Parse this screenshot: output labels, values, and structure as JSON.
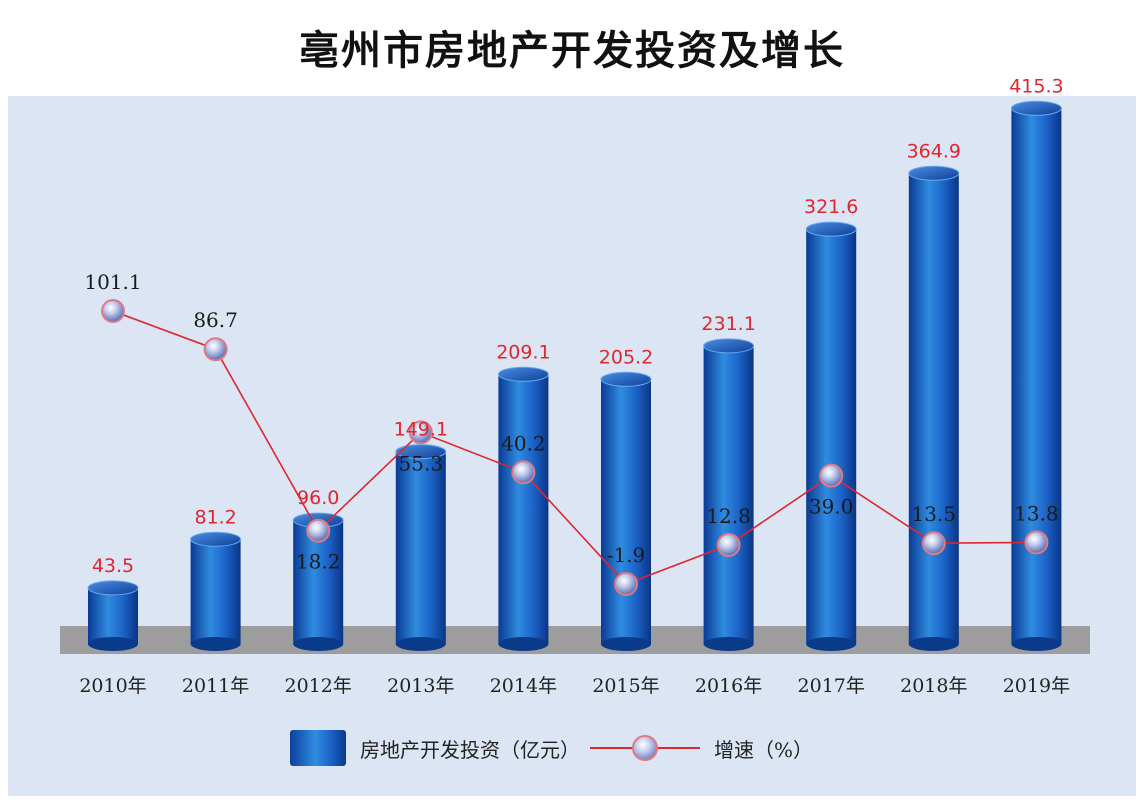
{
  "title": "亳州市房地产开发投资及增长",
  "colors": {
    "panel_bg": "#dbe5f3",
    "floor": "#9d9d9d",
    "bar_dark": "#0d3f9c",
    "bar_light": "#2f8ce0",
    "bar_label": "#e0262e",
    "line": "#e0262e",
    "growth_label": "#1a1a1a"
  },
  "chart_data": {
    "type": "bar",
    "categories": [
      "2010年",
      "2011年",
      "2012年",
      "2013年",
      "2014年",
      "2015年",
      "2016年",
      "2017年",
      "2018年",
      "2019年"
    ],
    "series": [
      {
        "name": "房地产开发投资（亿元）",
        "type": "bar",
        "values": [
          43.5,
          81.2,
          96.0,
          149.1,
          209.1,
          205.2,
          231.1,
          321.6,
          364.9,
          415.3
        ],
        "labels": [
          "43.5",
          "81.2",
          "96.0",
          "149.1",
          "209.1",
          "205.2",
          "231.1",
          "321.6",
          "364.9",
          "415.3"
        ]
      },
      {
        "name": "增速（%）",
        "type": "line",
        "values": [
          101.1,
          86.7,
          18.2,
          55.3,
          40.2,
          -1.9,
          12.8,
          39.0,
          13.5,
          13.8
        ],
        "labels": [
          "101.1",
          "86.7",
          "18.2",
          "55.3",
          "40.2",
          "-1.9",
          "12.8",
          "39.0",
          "13.5",
          "13.8"
        ]
      }
    ],
    "grid": false,
    "legend": "bottom"
  },
  "legend": {
    "bar_label": "房地产开发投资（亿元）",
    "line_label": "增速（%）"
  }
}
